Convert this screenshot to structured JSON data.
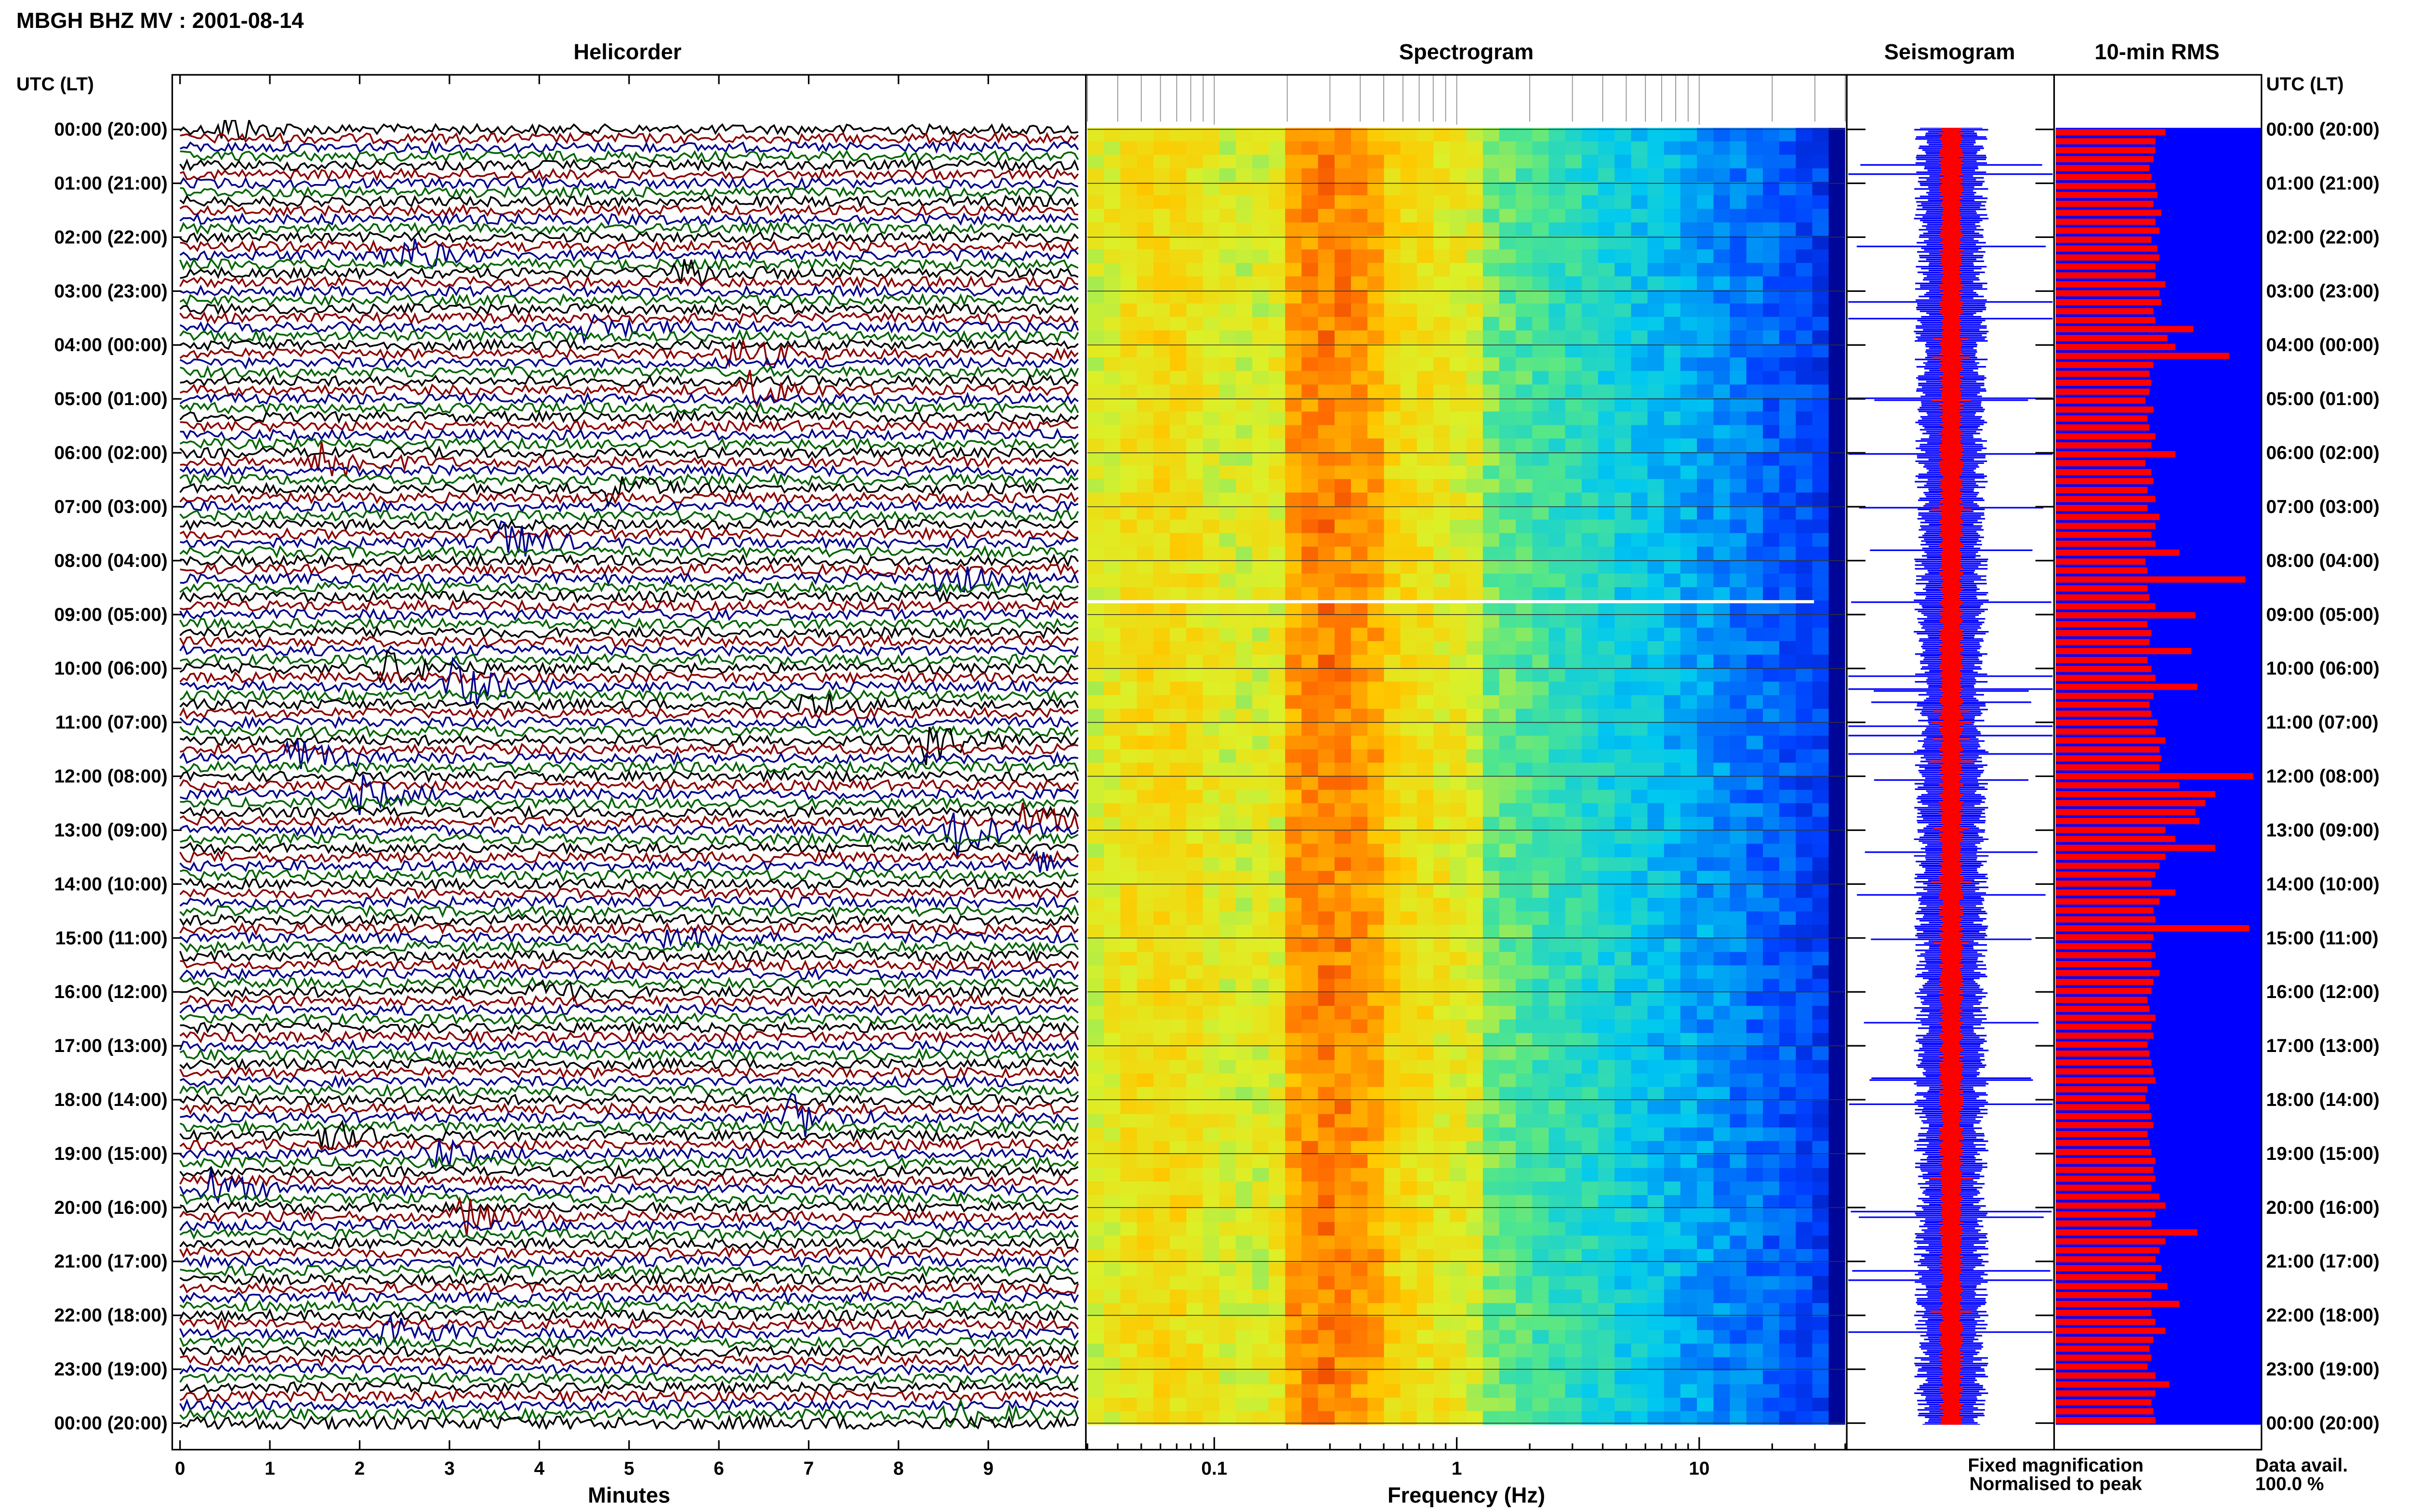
{
  "header": {
    "title": "MBGH BHZ MV : 2001-08-14"
  },
  "time_axis": {
    "label": "UTC (LT)",
    "ticks": [
      "00:00 (20:00)",
      "01:00 (21:00)",
      "02:00 (22:00)",
      "03:00 (23:00)",
      "04:00 (00:00)",
      "05:00 (01:00)",
      "06:00 (02:00)",
      "07:00 (03:00)",
      "08:00 (04:00)",
      "09:00 (05:00)",
      "10:00 (06:00)",
      "11:00 (07:00)",
      "12:00 (08:00)",
      "13:00 (09:00)",
      "14:00 (10:00)",
      "15:00 (11:00)",
      "16:00 (12:00)",
      "17:00 (13:00)",
      "18:00 (14:00)",
      "19:00 (15:00)",
      "20:00 (16:00)",
      "21:00 (17:00)",
      "22:00 (18:00)",
      "23:00 (19:00)",
      "00:00 (20:00)"
    ]
  },
  "colors": {
    "trace_black": "#000000",
    "trace_red": "#8b0000",
    "trace_blue": "#00008b",
    "trace_green": "#006400",
    "fixed": "#0000ff",
    "normalised": "#ff0000"
  },
  "panels": {
    "helicorder": {
      "title": "Helicorder",
      "xlabel": "Minutes",
      "ticks": [
        "0",
        "1",
        "2",
        "3",
        "4",
        "5",
        "6",
        "7",
        "8",
        "9"
      ]
    },
    "spectrogram": {
      "title": "Spectrogram",
      "xlabel": "Frequency (Hz)",
      "ticks": [
        "0.1",
        "1",
        "10"
      ]
    },
    "seismogram": {
      "title": "Seismogram"
    },
    "rms": {
      "title": "10-min RMS"
    }
  },
  "legend": {
    "fixed": "Fixed magnification",
    "normalised": "Normalised to peak"
  },
  "availability": {
    "label": "Data avail.",
    "value": "100.0 %"
  },
  "chart_data": [
    {
      "type": "line",
      "title": "Helicorder",
      "xlabel": "Minutes",
      "xlim": [
        0,
        10
      ],
      "rows": 145,
      "row_minutes": 10,
      "trace_colors": [
        "black",
        "red",
        "blue",
        "green"
      ]
    },
    {
      "type": "heatmap",
      "title": "Spectrogram",
      "xlabel": "Frequency (Hz)",
      "xscale": "log",
      "xlim": [
        0.03,
        40
      ],
      "peak_band_hz": [
        0.22,
        0.5
      ]
    },
    {
      "type": "bar",
      "title": "10-min RMS",
      "series": [
        "Fixed magnification",
        "Normalised to peak"
      ],
      "values_normalised": [
        0.55,
        0.5,
        0.5,
        0.49,
        0.47,
        0.48,
        0.5,
        0.51,
        0.49,
        0.53,
        0.5,
        0.52,
        0.48,
        0.51,
        0.52,
        0.5,
        0.5,
        0.55,
        0.52,
        0.53,
        0.49,
        0.5,
        0.69,
        0.56,
        0.6,
        0.87,
        0.49,
        0.47,
        0.48,
        0.47,
        0.45,
        0.49,
        0.46,
        0.47,
        0.5,
        0.48,
        0.6,
        0.45,
        0.48,
        0.49,
        0.46,
        0.5,
        0.46,
        0.52,
        0.5,
        0.48,
        0.5,
        0.62,
        0.45,
        0.46,
        0.95,
        0.46,
        0.47,
        0.5,
        0.7,
        0.46,
        0.48,
        0.47,
        0.68,
        0.46,
        0.48,
        0.5,
        0.71,
        0.49,
        0.47,
        0.48,
        0.51,
        0.5,
        0.55,
        0.52,
        0.53,
        0.52,
        0.99,
        0.62,
        0.8,
        0.75,
        0.7,
        0.72,
        0.55,
        0.6,
        0.8,
        0.55,
        0.52,
        0.5,
        0.48,
        0.6,
        0.52,
        0.49,
        0.5,
        0.97,
        0.49,
        0.48,
        0.5,
        0.48,
        0.52,
        0.49,
        0.48,
        0.46,
        0.47,
        0.5,
        0.48,
        0.49,
        0.46,
        0.47,
        0.48,
        0.49,
        0.5,
        0.46,
        0.45,
        0.47,
        0.48,
        0.49,
        0.46,
        0.47,
        0.48,
        0.5,
        0.49,
        0.5,
        0.48,
        0.52,
        0.55,
        0.5,
        0.48,
        0.71,
        0.55,
        0.52,
        0.5,
        0.53,
        0.5,
        0.56,
        0.48,
        0.62,
        0.48,
        0.5,
        0.55,
        0.49,
        0.47,
        0.48,
        0.46,
        0.5,
        0.57,
        0.5,
        0.48,
        0.49,
        0.5
      ]
    }
  ]
}
